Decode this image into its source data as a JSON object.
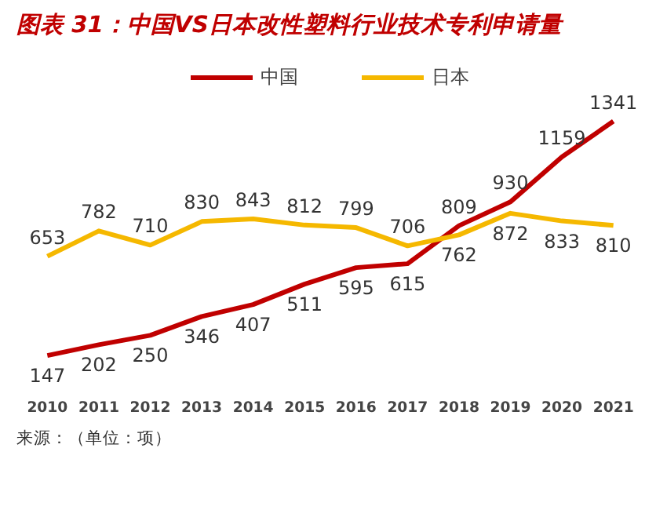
{
  "chart_data": {
    "type": "line",
    "title": "图表 31：中国VS日本改性塑料行业技术专利申请量",
    "categories": [
      "2010",
      "2011",
      "2012",
      "2013",
      "2014",
      "2015",
      "2016",
      "2017",
      "2018",
      "2019",
      "2020",
      "2021"
    ],
    "series": [
      {
        "name": "中国",
        "color": "#c00000",
        "values": [
          147,
          202,
          250,
          346,
          407,
          511,
          595,
          615,
          809,
          930,
          1159,
          1341
        ]
      },
      {
        "name": "日本",
        "color": "#f5b800",
        "values": [
          653,
          782,
          710,
          830,
          843,
          812,
          799,
          706,
          762,
          872,
          833,
          810
        ]
      }
    ],
    "data_labels": true,
    "legend": "top",
    "grid": false,
    "marker": "none",
    "line_style": "solid",
    "tick_labels": "x",
    "annotations": [
      "来源：（单位：项）"
    ]
  }
}
